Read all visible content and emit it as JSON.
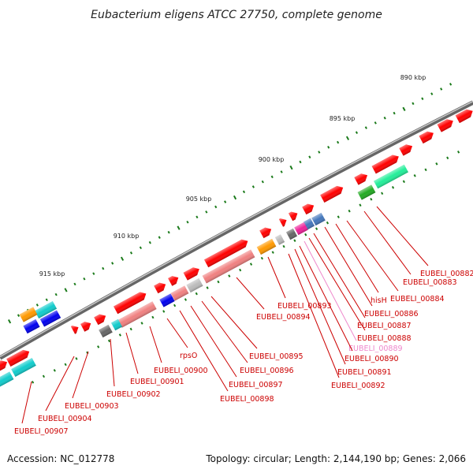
{
  "title": "Eubacterium eligens ATCC 27750, complete genome",
  "footer": {
    "accession": "Accession: NC_012778",
    "summary": "Topology: circular; Length: 2,144,190 bp; Genes: 2,066"
  },
  "ruler": {
    "labels": [
      "890 kbp",
      "895 kbp",
      "900 kbp",
      "905 kbp",
      "910 kbp",
      "915 kbp"
    ]
  },
  "genes": [
    {
      "name": "EUBELI_00882",
      "color": "#cc0000"
    },
    {
      "name": "EUBELI_00883",
      "color": "#cc0000"
    },
    {
      "name": "EUBELI_00884",
      "color": "#cc0000"
    },
    {
      "name": "hisH",
      "color": "#cc0000"
    },
    {
      "name": "EUBELI_00886",
      "color": "#cc0000"
    },
    {
      "name": "EUBELI_00887",
      "color": "#cc0000"
    },
    {
      "name": "EUBELI_00888",
      "color": "#cc0000"
    },
    {
      "name": "EUBELI_00889",
      "color": "#ee88cc"
    },
    {
      "name": "EUBELI_00890",
      "color": "#cc0000"
    },
    {
      "name": "EUBELI_00891",
      "color": "#cc0000"
    },
    {
      "name": "EUBELI_00892",
      "color": "#cc0000"
    },
    {
      "name": "EUBELI_00893",
      "color": "#cc0000"
    },
    {
      "name": "EUBELI_00894",
      "color": "#cc0000"
    },
    {
      "name": "EUBELI_00895",
      "color": "#cc0000"
    },
    {
      "name": "EUBELI_00896",
      "color": "#cc0000"
    },
    {
      "name": "EUBELI_00897",
      "color": "#cc0000"
    },
    {
      "name": "EUBELI_00898",
      "color": "#cc0000"
    },
    {
      "name": "rpsO",
      "color": "#cc0000"
    },
    {
      "name": "EUBELI_00900",
      "color": "#cc0000"
    },
    {
      "name": "EUBELI_00901",
      "color": "#cc0000"
    },
    {
      "name": "EUBELI_00902",
      "color": "#cc0000"
    },
    {
      "name": "EUBELI_00903",
      "color": "#cc0000"
    },
    {
      "name": "EUBELI_00904",
      "color": "#cc0000"
    },
    {
      "name": "EUBELI_00907",
      "color": "#cc0000"
    }
  ],
  "colors": {
    "cds": "#ff0000",
    "backbone": "#888888",
    "tick": "#1a7a1a",
    "orange": "#ff9900",
    "cyan": "#11cccc",
    "blue": "#0000ee",
    "gray": "#666666",
    "magenta": "#ee2299",
    "steelblue": "#4477bb",
    "green": "#22aa22",
    "springgreen": "#22ee99",
    "salmon": "#f08080",
    "silver": "#bbbbbb"
  }
}
